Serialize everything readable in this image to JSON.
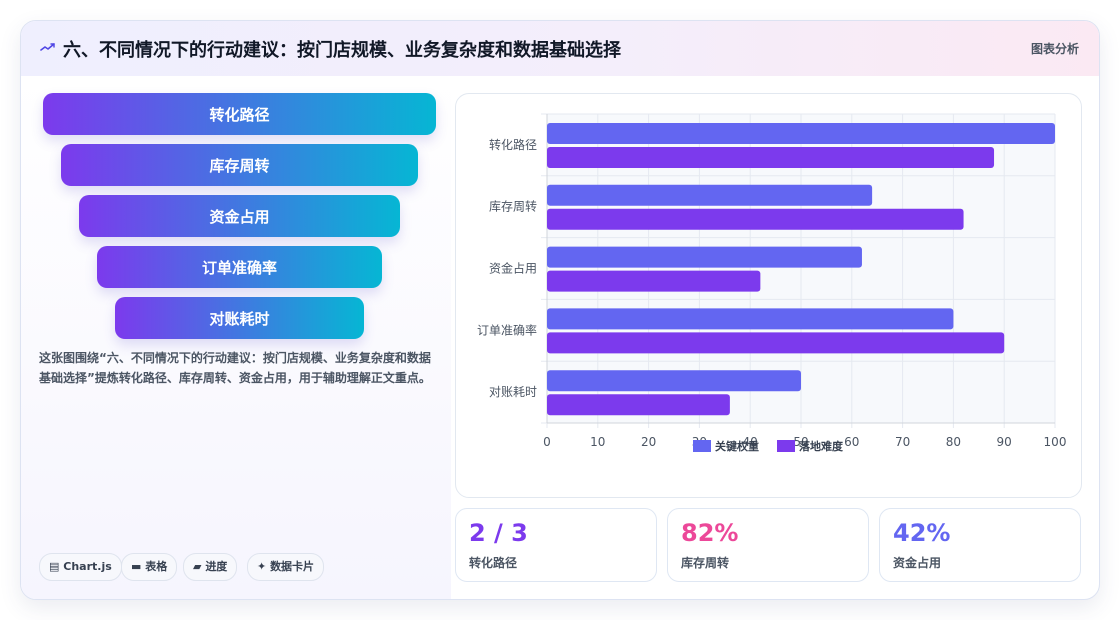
{
  "header": {
    "icon": "trend-line-icon",
    "title": "六、不同情况下的行动建议：按门店规模、业务复杂度和数据基础选择",
    "tag": "图表分析"
  },
  "funnel": {
    "items": [
      "转化路径",
      "库存周转",
      "资金占用",
      "订单准确率",
      "对账耗时"
    ]
  },
  "description": "这张图围绕“六、不同情况下的行动建议：按门店规模、业务复杂度和数据基础选择”提炼转化路径、库存周转、资金占用，用于辅助理解正文重点。",
  "chips": [
    {
      "icon": "chart-icon",
      "glyph": "▤",
      "label": "Chart.js"
    },
    {
      "icon": "table-icon",
      "glyph": "▬",
      "label": "表格"
    },
    {
      "icon": "progress-icon",
      "glyph": "▰",
      "label": "进度"
    },
    {
      "icon": "sparkle-icon",
      "glyph": "✦",
      "label": "数据卡片"
    }
  ],
  "chart_data": {
    "type": "bar",
    "orientation": "horizontal",
    "categories": [
      "转化路径",
      "库存周转",
      "资金占用",
      "订单准确率",
      "对账耗时"
    ],
    "series": [
      {
        "name": "关键权重",
        "color": "#6366f1",
        "values": [
          100,
          64,
          62,
          80,
          50
        ]
      },
      {
        "name": "落地难度",
        "color": "#7c3aed",
        "values": [
          88,
          82,
          42,
          90,
          36
        ]
      }
    ],
    "xlim": [
      0,
      100
    ],
    "xticks": [
      0,
      10,
      20,
      30,
      40,
      50,
      60,
      70,
      80,
      90,
      100
    ],
    "grid": true,
    "legend": "bottom"
  },
  "kpis": [
    {
      "value": "2 / 3",
      "label": "转化路径",
      "color": "#7c3aed"
    },
    {
      "value": "82%",
      "label": "库存周转",
      "color": "#ec4899"
    },
    {
      "value": "42%",
      "label": "资金占用",
      "color": "#6366f1"
    }
  ]
}
